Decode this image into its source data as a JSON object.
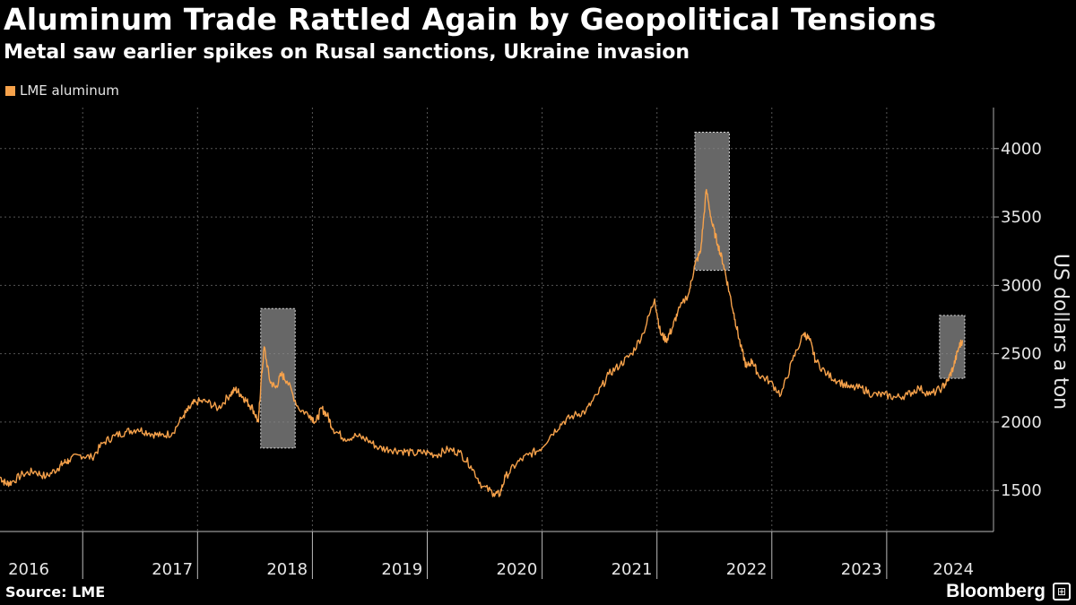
{
  "header": {
    "title": "Aluminum Trade Rattled Again by Geopolitical Tensions",
    "subtitle": "Metal saw earlier spikes on Rusal sanctions, Ukraine invasion"
  },
  "footer": {
    "source": "Source: LME",
    "brand": "Bloomberg"
  },
  "colors": {
    "series": "#f7a24b",
    "background": "#000000",
    "highlight": "#8a8a8a"
  },
  "chart_data": {
    "type": "line",
    "title": "Aluminum Trade Rattled Again by Geopolitical Tensions",
    "subtitle": "Metal saw earlier spikes on Rusal sanctions, Ukraine invasion",
    "xlabel": "",
    "ylabel": "US dollars a ton",
    "xlim": [
      2016.0,
      2024.65
    ],
    "ylim": [
      1200,
      4300
    ],
    "yticks": [
      1500,
      2000,
      2500,
      3000,
      3500,
      4000
    ],
    "xtick_labels": [
      {
        "label": "2016",
        "pos": 2016.25
      },
      {
        "label": "2017",
        "pos": 2017.5
      },
      {
        "label": "2018",
        "pos": 2018.5
      },
      {
        "label": "2019",
        "pos": 2019.5
      },
      {
        "label": "2020",
        "pos": 2020.5
      },
      {
        "label": "2021",
        "pos": 2021.5
      },
      {
        "label": "2022",
        "pos": 2022.5
      },
      {
        "label": "2023",
        "pos": 2023.5
      },
      {
        "label": "2024",
        "pos": 2024.3
      }
    ],
    "year_dividers": [
      2016.72,
      2017.72,
      2018.72,
      2019.72,
      2020.72,
      2021.72,
      2022.72,
      2023.72
    ],
    "grid": true,
    "legend": "top-left",
    "series": [
      {
        "name": "LME aluminum",
        "x": [
          2016.0,
          2016.05,
          2016.1,
          2016.2,
          2016.3,
          2016.4,
          2016.5,
          2016.55,
          2016.6,
          2016.7,
          2016.8,
          2016.9,
          2017.0,
          2017.1,
          2017.2,
          2017.3,
          2017.4,
          2017.5,
          2017.6,
          2017.65,
          2017.7,
          2017.8,
          2017.9,
          2018.0,
          2018.05,
          2018.1,
          2018.15,
          2018.2,
          2018.25,
          2018.27,
          2018.3,
          2018.35,
          2018.4,
          2018.45,
          2018.5,
          2018.6,
          2018.7,
          2018.75,
          2018.8,
          2018.85,
          2018.9,
          2019.0,
          2019.1,
          2019.2,
          2019.3,
          2019.4,
          2019.5,
          2019.6,
          2019.7,
          2019.8,
          2019.9,
          2020.0,
          2020.1,
          2020.2,
          2020.3,
          2020.35,
          2020.4,
          2020.5,
          2020.6,
          2020.7,
          2020.8,
          2020.9,
          2021.0,
          2021.1,
          2021.2,
          2021.3,
          2021.4,
          2021.5,
          2021.6,
          2021.7,
          2021.75,
          2021.8,
          2021.85,
          2021.9,
          2022.0,
          2022.05,
          2022.1,
          2022.15,
          2022.2,
          2022.25,
          2022.3,
          2022.35,
          2022.4,
          2022.45,
          2022.5,
          2022.55,
          2022.6,
          2022.7,
          2022.8,
          2022.9,
          2023.0,
          2023.05,
          2023.1,
          2023.2,
          2023.3,
          2023.4,
          2023.5,
          2023.6,
          2023.7,
          2023.8,
          2023.9,
          2024.0,
          2024.1,
          2024.2,
          2024.25,
          2024.3,
          2024.35,
          2024.38
        ],
        "y": [
          1600,
          1550,
          1560,
          1620,
          1640,
          1600,
          1660,
          1700,
          1720,
          1760,
          1740,
          1850,
          1900,
          1930,
          1950,
          1920,
          1900,
          1920,
          2050,
          2100,
          2150,
          2150,
          2100,
          2200,
          2240,
          2200,
          2150,
          2100,
          2000,
          2260,
          2550,
          2300,
          2250,
          2350,
          2300,
          2100,
          2050,
          2000,
          2100,
          2050,
          1950,
          1880,
          1900,
          1870,
          1810,
          1800,
          1790,
          1770,
          1780,
          1760,
          1800,
          1780,
          1680,
          1530,
          1480,
          1470,
          1600,
          1700,
          1760,
          1800,
          1910,
          2000,
          2050,
          2080,
          2200,
          2350,
          2420,
          2500,
          2650,
          2900,
          2650,
          2600,
          2680,
          2800,
          2950,
          3150,
          3250,
          3700,
          3450,
          3300,
          3150,
          2950,
          2750,
          2550,
          2400,
          2450,
          2350,
          2300,
          2200,
          2450,
          2650,
          2600,
          2450,
          2350,
          2300,
          2250,
          2250,
          2200,
          2200,
          2180,
          2200,
          2250,
          2200,
          2250,
          2300,
          2400,
          2550,
          2600
        ]
      }
    ],
    "highlight_boxes": [
      {
        "x0": 2018.27,
        "x1": 2018.57,
        "y0": 1810,
        "y1": 2830
      },
      {
        "x0": 2022.05,
        "x1": 2022.35,
        "y0": 3110,
        "y1": 4120
      },
      {
        "x0": 2024.18,
        "x1": 2024.4,
        "y0": 2320,
        "y1": 2780
      }
    ]
  }
}
